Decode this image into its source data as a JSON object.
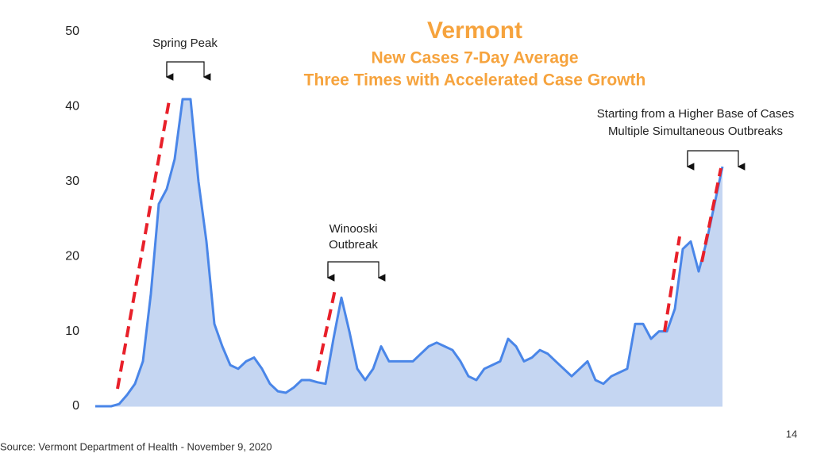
{
  "chart_data": {
    "type": "area",
    "title": "Vermont",
    "subtitle": [
      "New Cases 7-Day Average",
      "Three Times with Accelerated Case Growth"
    ],
    "annotations": [
      "Spring Peak",
      "Winooski",
      "Outbreak",
      "Starting from a Higher Base of Cases",
      "Multiple Simultaneous Outbreaks"
    ],
    "source": "Source: Vermont Department of Health - November 9, 2020",
    "page_number": "14",
    "values": [
      0,
      0,
      0,
      0.3,
      1.5,
      3,
      6,
      15,
      27,
      29,
      33,
      41,
      41,
      30,
      22,
      11,
      8,
      5.5,
      5,
      6,
      6.5,
      5,
      3,
      2,
      1.8,
      2.5,
      3.5,
      3.5,
      3.2,
      3,
      9,
      14.5,
      10,
      5,
      3.5,
      5,
      8,
      6,
      6,
      6,
      6,
      7,
      8,
      8.5,
      8,
      7.5,
      6,
      4,
      3.5,
      5,
      5.5,
      6,
      9,
      8,
      6,
      6.5,
      7.5,
      7,
      6,
      5,
      4,
      5,
      6,
      3.5,
      3,
      4,
      4.5,
      5,
      11,
      11,
      9,
      10,
      10,
      13,
      21,
      22,
      18,
      22,
      27,
      32
    ],
    "color": "#4a86e8",
    "fill": "#c5d6f2",
    "ylim": [
      0,
      50
    ],
    "yticks": [
      0,
      10,
      20,
      30,
      40,
      50
    ],
    "grid": false
  }
}
